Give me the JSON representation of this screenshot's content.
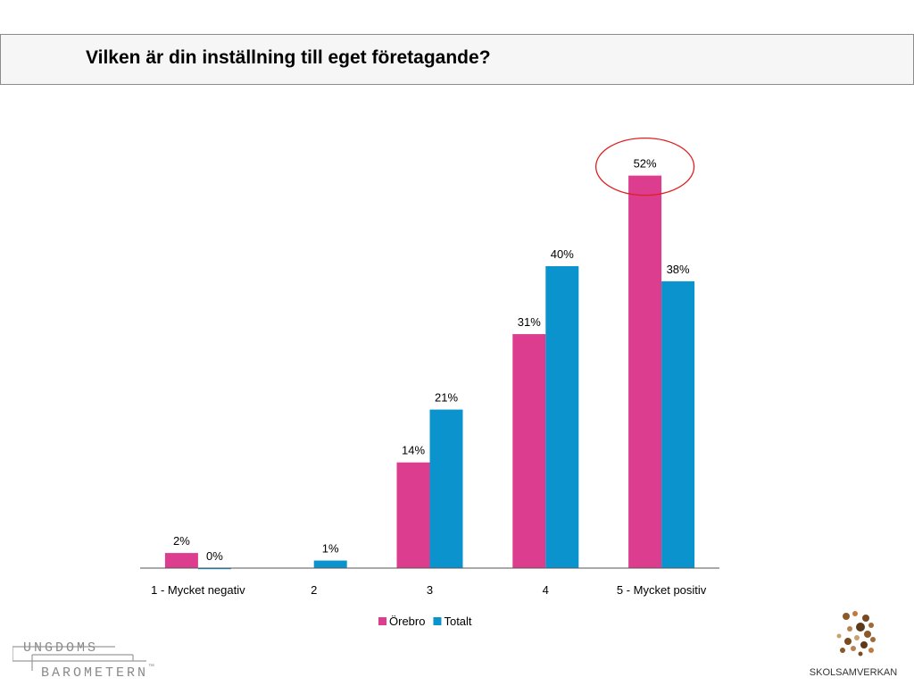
{
  "title": "Vilken är din inställning till eget företagande?",
  "chart_data": {
    "type": "bar",
    "categories": [
      "1 - Mycket negativ",
      "2",
      "3",
      "4",
      "5 - Mycket positiv"
    ],
    "series": [
      {
        "name": "Örebro",
        "values": [
          2,
          null,
          14,
          31,
          52
        ],
        "labels": [
          "2%",
          "",
          "14%",
          "31%",
          "52%"
        ],
        "color": "#dd3d8f"
      },
      {
        "name": "Totalt",
        "values": [
          0,
          1,
          21,
          40,
          38
        ],
        "labels": [
          "0%",
          "1%",
          "21%",
          "40%",
          "38%"
        ],
        "color": "#0a93cd"
      }
    ],
    "ylim": [
      0,
      55
    ],
    "grid": false,
    "legend": "bottom",
    "highlight": {
      "category": "5 - Mycket positiv",
      "series": "Örebro",
      "color": "#e02020"
    }
  },
  "logos": {
    "left": {
      "line1": "UNGDOMS",
      "line2": "BAROMETERN",
      "tm": "™"
    },
    "right": {
      "text": "SKOLSAMVERKAN"
    }
  }
}
